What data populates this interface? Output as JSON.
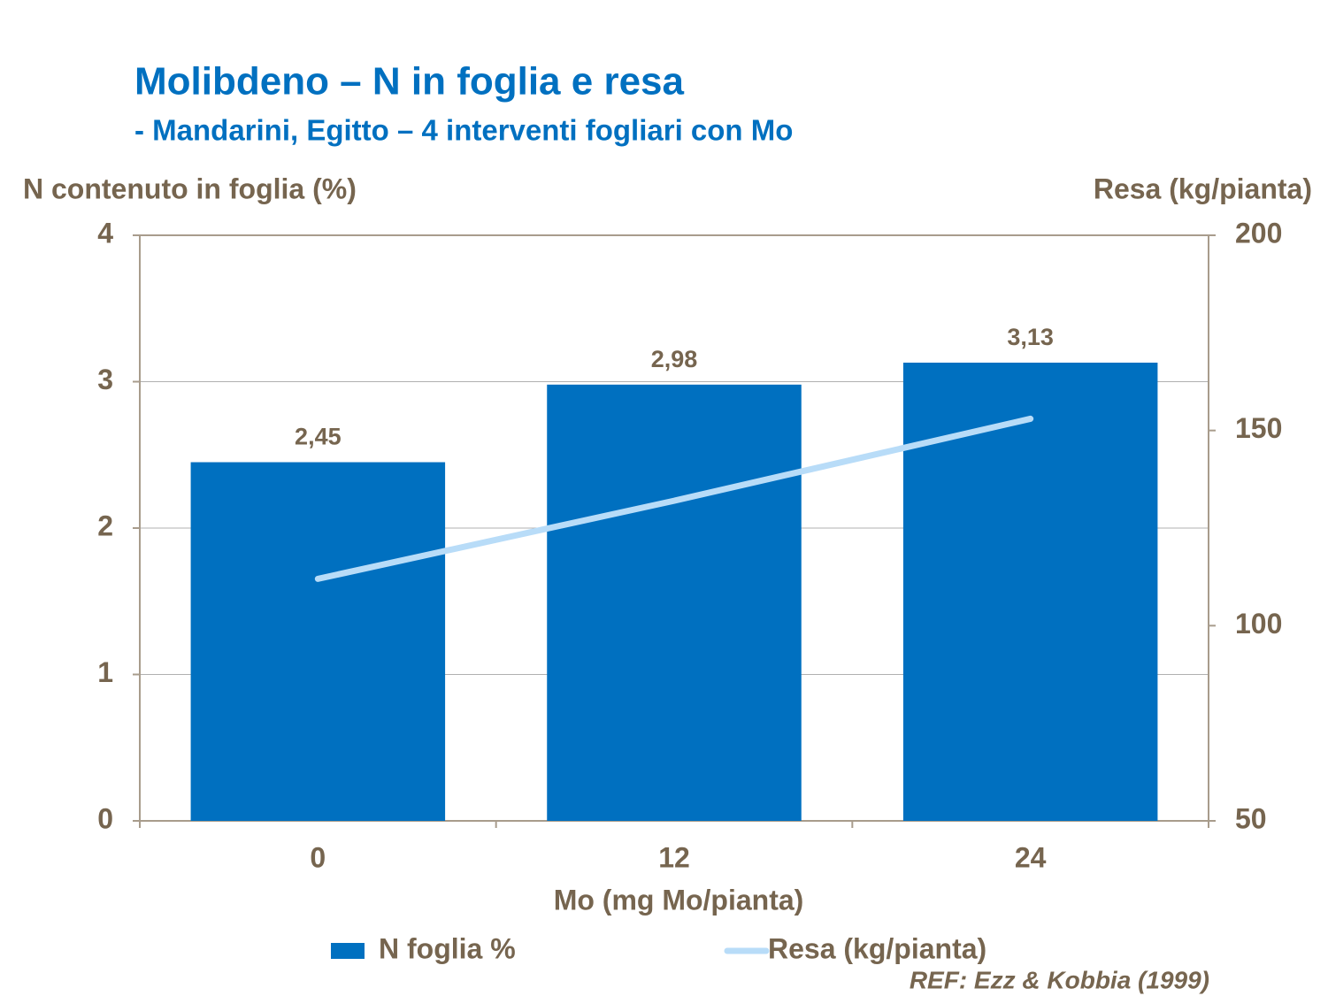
{
  "chart_data": {
    "type": "bar",
    "title": "Molibdeno – N in foglia e resa",
    "subtitle": "- Mandarini, Egitto – 4 interventi fogliari con Mo",
    "y_label": "N contenuto in foglia (%)",
    "y2_label": "Resa (kg/pianta)",
    "x_label": "Mo (mg Mo/pianta)",
    "annotation": "REF: Ezz & Kobbia (1999)",
    "categories": [
      "0",
      "12",
      "24"
    ],
    "series": [
      {
        "name": "N foglia %",
        "type": "bar",
        "color": "#0070c0",
        "values": [
          2.45,
          2.98,
          3.13
        ],
        "value_labels": [
          "2,45",
          "2,98",
          "3,13"
        ]
      },
      {
        "name": "Resa (kg/pianta)",
        "type": "line",
        "axis": "y2",
        "color": "#b8dcf8",
        "values": [
          112,
          132,
          153
        ]
      }
    ],
    "ylim": [
      0,
      4
    ],
    "yticks": [
      0,
      1,
      2,
      3,
      4
    ],
    "y2lim": [
      50,
      200
    ],
    "y2ticks": [
      50,
      100,
      150,
      200
    ],
    "grid": true,
    "legend": "bottom"
  }
}
